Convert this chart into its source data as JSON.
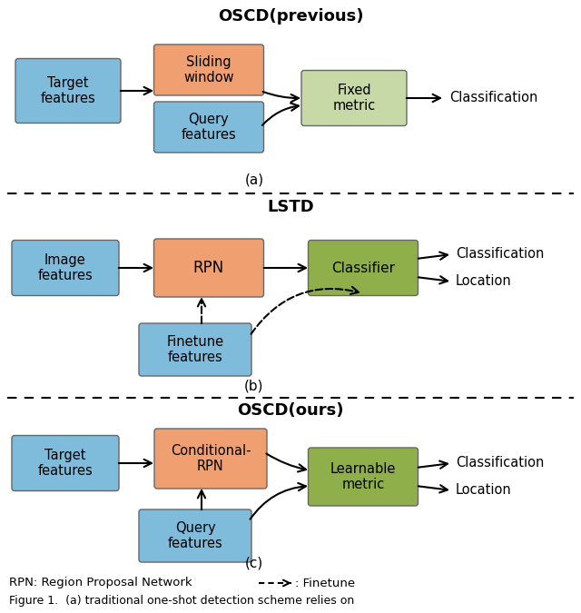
{
  "title_a": "OSCD(previous)",
  "title_b": "LSTD",
  "title_c": "OSCD(ours)",
  "label_a": "(a)",
  "label_b": "(b)",
  "label_c": "(c)",
  "color_blue": "#7FBCDC",
  "color_orange": "#F0A070",
  "color_green_light": "#C8D9A8",
  "color_green": "#8FAF4A",
  "bg_color": "#FFFFFF",
  "footnote": "RPN: Region Proposal Network",
  "footnote2": ": Finetune"
}
